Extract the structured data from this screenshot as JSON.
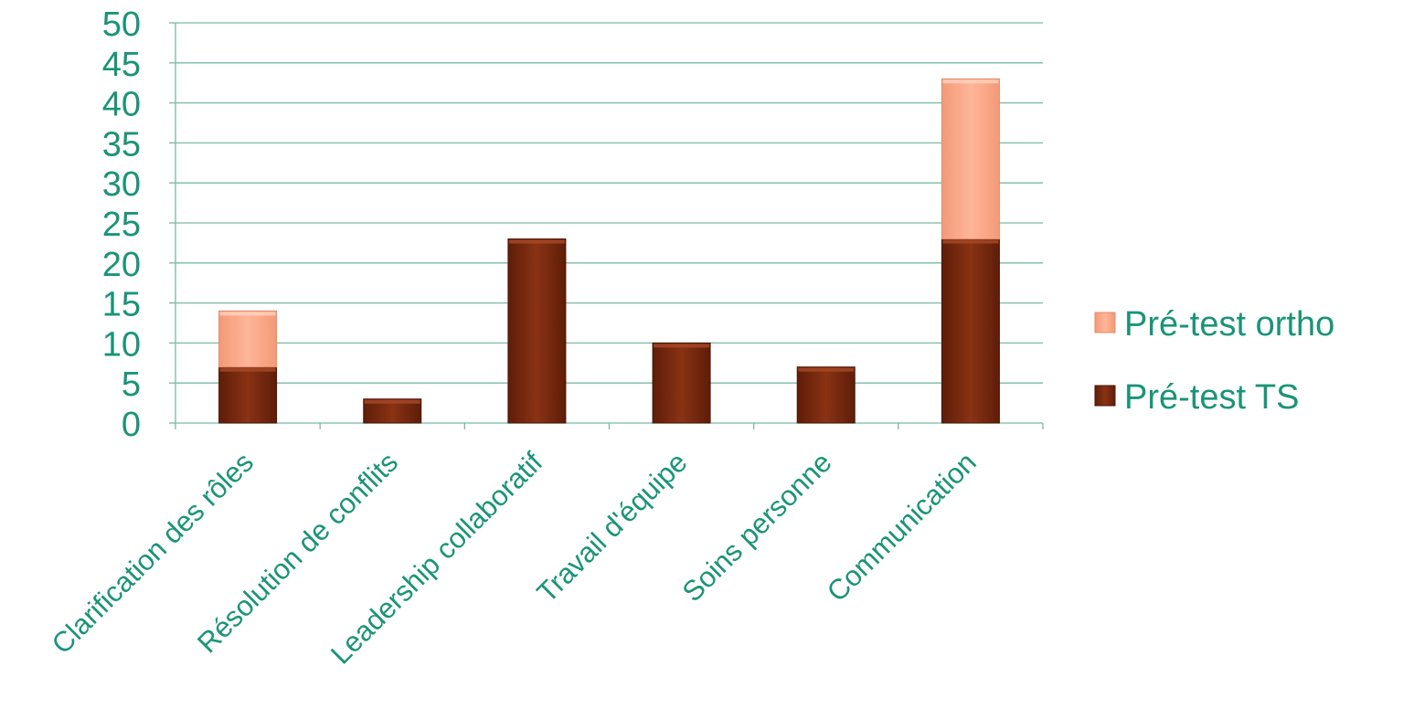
{
  "chart_data": {
    "type": "bar",
    "stacked": true,
    "categories": [
      "Clarification des rôles",
      "Résolution de conflits",
      "Leadership collaboratif",
      "Travail d'équipe",
      "Soins personne",
      "Communication"
    ],
    "series": [
      {
        "name": "Pré-test TS",
        "values": [
          7,
          3,
          23,
          10,
          7,
          23
        ],
        "color": "#7a2a10"
      },
      {
        "name": "Pré-test ortho",
        "values": [
          7,
          0,
          0,
          0,
          0,
          20
        ],
        "color": "#f7a888"
      }
    ],
    "yticks": [
      "0",
      "5",
      "10",
      "15",
      "20",
      "25",
      "30",
      "35",
      "40",
      "45",
      "50"
    ],
    "ylim": [
      0,
      50
    ],
    "grid": true,
    "legend_position": "right",
    "text_color": "#1a9477",
    "axis_color": "#7ab8a8"
  }
}
